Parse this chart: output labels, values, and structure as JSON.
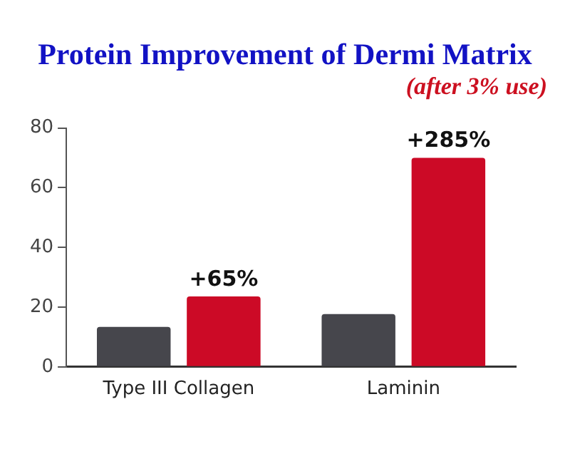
{
  "chart_data": {
    "type": "bar",
    "title": "Protein Improvement of Dermi Matrix",
    "subtitle": "(after 3% use)",
    "categories": [
      "Type III Collagen",
      "Laminin"
    ],
    "series": [
      {
        "color": "#46464c",
        "values": [
          13.4,
          17.7
        ]
      },
      {
        "color": "#cc0a26",
        "values": [
          23.6,
          70
        ]
      }
    ],
    "annotations": [
      "+65%",
      "+285%"
    ],
    "ylim": [
      0,
      80
    ],
    "yticks": [
      0,
      20,
      40,
      60,
      80
    ],
    "grid": false,
    "legend": false
  }
}
